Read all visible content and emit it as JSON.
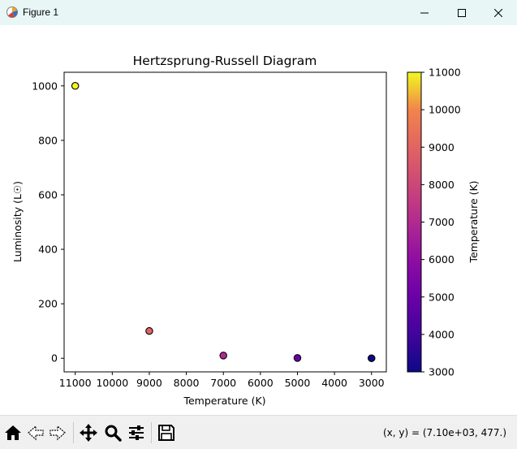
{
  "window": {
    "title": "Figure 1"
  },
  "toolbar": {
    "buttons": [
      "home-icon",
      "back-icon",
      "forward-icon",
      "pan-icon",
      "zoom-icon",
      "configure-subplots-icon",
      "save-icon"
    ],
    "coords_text": "(x, y) = (7.10e+03, 477.)"
  },
  "chart_data": {
    "type": "scatter",
    "title": "Hertzsprung-Russell Diagram",
    "xlabel": "Temperature (K)",
    "ylabel": "Luminosity (L☉)",
    "x_inverted": true,
    "xlim": [
      11300,
      2600
    ],
    "ylim": [
      -50,
      1050
    ],
    "xticks": [
      11000,
      10000,
      9000,
      8000,
      7000,
      6000,
      5000,
      4000,
      3000
    ],
    "yticks": [
      0,
      200,
      400,
      600,
      800,
      1000
    ],
    "points": [
      {
        "temperature": 11000,
        "luminosity": 1000
      },
      {
        "temperature": 9000,
        "luminosity": 100
      },
      {
        "temperature": 7000,
        "luminosity": 10
      },
      {
        "temperature": 5000,
        "luminosity": 1
      },
      {
        "temperature": 3000,
        "luminosity": 0.1
      }
    ],
    "colorbar": {
      "label": "Temperature (K)",
      "colormap": "plasma",
      "range": [
        3000,
        11000
      ],
      "ticks": [
        3000,
        4000,
        5000,
        6000,
        7000,
        8000,
        9000,
        10000,
        11000
      ]
    },
    "marker_edge_color": "#000000",
    "grid": false
  }
}
